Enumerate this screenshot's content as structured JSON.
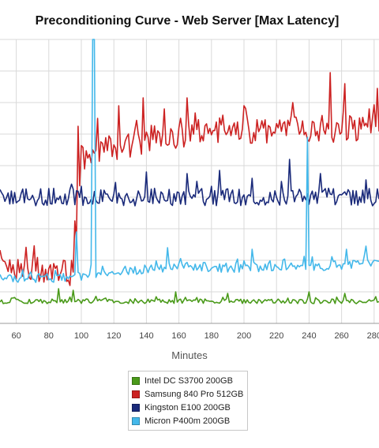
{
  "chart_data": {
    "type": "line",
    "title": "Preconditioning Curve - Web Server [Max Latency]",
    "xlabel": "Minutes",
    "ylabel": "",
    "x_ticks": [
      60,
      80,
      100,
      120,
      140,
      160,
      180,
      200,
      220,
      240,
      260,
      280
    ],
    "xlim": [
      50,
      283
    ],
    "ylim": [
      0,
      18
    ],
    "grid": true,
    "legend_position": "bottom-center",
    "series": [
      {
        "name": "Intel DC S3700 200GB",
        "color": "#4a9a1a",
        "keyframes": [
          [
            50,
            1.4
          ],
          [
            283,
            1.4
          ]
        ],
        "baseline": 1.4,
        "noise": 0.15,
        "spikes": [
          [
            86,
            2.2
          ],
          [
            95,
            2.1
          ],
          [
            158,
            2.0
          ],
          [
            190,
            1.9
          ],
          [
            240,
            2.0
          ],
          [
            262,
            1.9
          ]
        ]
      },
      {
        "name": "Samsung 840 Pro 512GB",
        "color": "#cc2222",
        "keyframes": [
          [
            50,
            3.3
          ],
          [
            96,
            3.3
          ],
          [
            100,
            10.5
          ],
          [
            120,
            11.2
          ],
          [
            160,
            12.0
          ],
          [
            200,
            12.2
          ],
          [
            240,
            12.3
          ],
          [
            283,
            12.3
          ]
        ],
        "baseline": 0,
        "noise": 0.9,
        "spikes": [
          [
            96,
            6.5
          ],
          [
            98,
            12.5
          ],
          [
            110,
            13.0
          ],
          [
            123,
            13.8
          ],
          [
            138,
            14.3
          ],
          [
            151,
            13.6
          ],
          [
            165,
            14.3
          ],
          [
            200,
            13.8
          ],
          [
            230,
            14.0
          ],
          [
            253,
            15.9
          ],
          [
            262,
            15.2
          ],
          [
            277,
            13.6
          ],
          [
            282,
            14.9
          ]
        ]
      },
      {
        "name": "Kingston E100 200GB",
        "color": "#1a2a7a",
        "keyframes": [
          [
            50,
            8.0
          ],
          [
            283,
            8.0
          ]
        ],
        "baseline": 8.0,
        "noise": 0.55,
        "spikes": [
          [
            140,
            9.6
          ],
          [
            165,
            9.5
          ],
          [
            185,
            9.7
          ],
          [
            205,
            9.2
          ],
          [
            228,
            10.4
          ],
          [
            247,
            9.5
          ],
          [
            275,
            9.1
          ]
        ]
      },
      {
        "name": "Micron P400m 200GB",
        "color": "#44b8ea",
        "keyframes": [
          [
            50,
            2.9
          ],
          [
            96,
            2.9
          ],
          [
            110,
            3.2
          ],
          [
            160,
            3.6
          ],
          [
            200,
            3.5
          ],
          [
            240,
            3.6
          ],
          [
            283,
            3.8
          ]
        ],
        "baseline": 0,
        "noise": 0.3,
        "spikes": [
          [
            97,
            5.8
          ],
          [
            107,
            18.0
          ],
          [
            108,
            18.0
          ],
          [
            153,
            4.8
          ],
          [
            205,
            4.7
          ],
          [
            239,
            11.8
          ],
          [
            263,
            4.7
          ],
          [
            275,
            4.9
          ]
        ]
      }
    ]
  }
}
